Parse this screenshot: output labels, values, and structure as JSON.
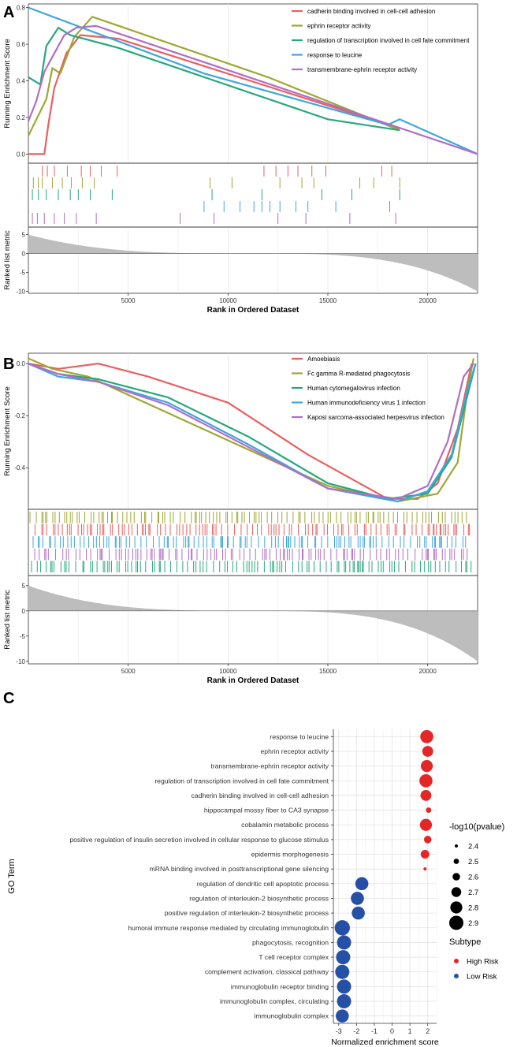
{
  "chart_data": [
    {
      "panel": "A",
      "type": "line",
      "title": "",
      "xlabel": "Rank in Ordered Dataset",
      "ylabel": "Running Enrichment Score",
      "ylabel_bottom": "Ranked list metric",
      "xlim": [
        0,
        22500
      ],
      "ylim": [
        -0.05,
        0.82
      ],
      "y_ticks": [
        "0.0",
        "0.2",
        "0.4",
        "0.6",
        "0.8"
      ],
      "y_tick_values": [
        0.0,
        0.2,
        0.4,
        0.6,
        0.8
      ],
      "x_ticks": [
        "5000",
        "10000",
        "15000",
        "20000"
      ],
      "x_tick_values": [
        5000,
        10000,
        15000,
        20000
      ],
      "metric_ticks": [
        "5",
        "0",
        "-5",
        "-10"
      ],
      "metric_tick_values": [
        5,
        0,
        -5,
        -10
      ],
      "metric_ylim": [
        -10.5,
        7
      ],
      "metric_start": 5,
      "metric_end": -10,
      "legend_position": "top-right",
      "series": [
        {
          "name": "cadherin binding involved in cell-cell adhesion",
          "color": "#E8605F",
          "x": [
            0,
            800,
            1000,
            1300,
            1900,
            2600,
            4500,
            18600
          ],
          "y": [
            0.0,
            0.0,
            0.16,
            0.36,
            0.55,
            0.65,
            0.63,
            0.14
          ],
          "hits": [
            700,
            950,
            1300,
            1950,
            2650,
            3100,
            3650,
            4450,
            11800,
            12400,
            13000,
            13500,
            14200,
            14900,
            17700,
            18200
          ]
        },
        {
          "name": "ephrin receptor activity",
          "color": "#9FA732",
          "x": [
            0,
            900,
            1200,
            1600,
            2300,
            3200,
            12000,
            18600
          ],
          "y": [
            0.1,
            0.3,
            0.47,
            0.44,
            0.64,
            0.75,
            0.42,
            0.13
          ],
          "hits": [
            250,
            500,
            700,
            1200,
            1700,
            2150,
            2700,
            3300,
            9100,
            10200,
            12600,
            13700,
            14300,
            16600,
            17300,
            18600
          ]
        },
        {
          "name": "regulation of transcription involved in cell fate commitment",
          "color": "#27A87A",
          "x": [
            0,
            600,
            900,
            1500,
            2100,
            4500,
            15000,
            18600
          ],
          "y": [
            0.42,
            0.38,
            0.59,
            0.69,
            0.65,
            0.58,
            0.19,
            0.13
          ],
          "hits": [
            200,
            500,
            900,
            1500,
            2100,
            2500,
            3100,
            4200,
            9200,
            11700,
            14700,
            16200,
            18600
          ]
        },
        {
          "name": "response to leucine",
          "color": "#3EA6DF",
          "x": [
            0,
            8800,
            18000,
            18600,
            22500
          ],
          "y": [
            0.8,
            0.44,
            0.16,
            0.19,
            0.0
          ],
          "hits": [
            8800,
            9800,
            10600,
            11300,
            11700,
            12100,
            12600,
            13400,
            14000,
            15400,
            18100
          ]
        },
        {
          "name": "transmembrane-ephrin receptor activity",
          "color": "#B26DC4",
          "x": [
            0,
            400,
            800,
            1300,
            1800,
            2400,
            3400,
            22500
          ],
          "y": [
            0.18,
            0.29,
            0.45,
            0.55,
            0.65,
            0.69,
            0.7,
            0.0
          ],
          "hits": [
            200,
            450,
            800,
            1300,
            1800,
            2400,
            3400,
            7600,
            9300,
            12500,
            13900,
            16100,
            18400
          ]
        }
      ]
    },
    {
      "panel": "B",
      "type": "line",
      "title": "",
      "xlabel": "Rank in Ordered Dataset",
      "ylabel": "Running Enrichment Score",
      "ylabel_bottom": "Ranked list metric",
      "xlim": [
        0,
        22500
      ],
      "ylim": [
        -0.56,
        0.04
      ],
      "y_ticks": [
        "0.0",
        "-0.2",
        "-0.4"
      ],
      "y_tick_values": [
        0.0,
        -0.2,
        -0.4
      ],
      "x_ticks": [
        "5000",
        "10000",
        "15000",
        "20000"
      ],
      "x_tick_values": [
        5000,
        10000,
        15000,
        20000
      ],
      "metric_ticks": [
        "5",
        "0",
        "-5",
        "-10"
      ],
      "metric_tick_values": [
        5,
        0,
        -5,
        -10
      ],
      "metric_ylim": [
        -10.5,
        7
      ],
      "metric_start": 5,
      "metric_end": -10,
      "legend_position": "top-right",
      "series": [
        {
          "name": "Amoebiasis",
          "color": "#E8605F",
          "x": [
            0,
            1500,
            3500,
            6000,
            10000,
            14000,
            18000,
            19500,
            20500,
            21500,
            22200
          ],
          "y": [
            0.0,
            -0.02,
            0.0,
            -0.05,
            -0.15,
            -0.35,
            -0.52,
            -0.52,
            -0.46,
            -0.25,
            0.0
          ],
          "hit_tracks": 1
        },
        {
          "name": "Fc gamma R-mediated phagocytosis",
          "color": "#9FA732",
          "x": [
            0,
            1200,
            3000,
            7000,
            11000,
            15000,
            18500,
            20500,
            21500,
            22000,
            22300
          ],
          "y": [
            0.02,
            -0.02,
            -0.05,
            -0.19,
            -0.33,
            -0.47,
            -0.53,
            -0.5,
            -0.38,
            -0.1,
            0.02
          ],
          "hit_tracks": 0
        },
        {
          "name": "Human cytomegalovirus infection",
          "color": "#27A87A",
          "x": [
            0,
            1500,
            3500,
            7000,
            11000,
            15000,
            18000,
            20000,
            21200,
            22000,
            22400
          ],
          "y": [
            0.0,
            -0.04,
            -0.06,
            -0.13,
            -0.28,
            -0.46,
            -0.52,
            -0.5,
            -0.36,
            -0.12,
            0.0
          ],
          "hit_tracks": 4
        },
        {
          "name": "Human immunodeficiency virus 1 infection",
          "color": "#3EA6DF",
          "x": [
            0,
            1500,
            3500,
            7000,
            11000,
            15000,
            18500,
            20000,
            21200,
            22000,
            22400
          ],
          "y": [
            0.0,
            -0.05,
            -0.07,
            -0.15,
            -0.31,
            -0.48,
            -0.53,
            -0.49,
            -0.35,
            -0.1,
            0.0
          ],
          "hit_tracks": 2
        },
        {
          "name": "Kaposi sarcoma-associated herpesvirus infection",
          "color": "#B26DC4",
          "x": [
            0,
            1500,
            3500,
            7000,
            11000,
            15000,
            18500,
            20000,
            21000,
            21800,
            22300
          ],
          "y": [
            0.0,
            -0.04,
            -0.07,
            -0.16,
            -0.32,
            -0.48,
            -0.52,
            -0.47,
            -0.3,
            -0.05,
            0.0
          ],
          "hit_tracks": 3
        }
      ]
    },
    {
      "panel": "C",
      "type": "scatter",
      "title": "",
      "xlabel": "Normalized enrichment score",
      "ylabel": "GO Term",
      "xlim": [
        -3.3,
        2.5
      ],
      "x_ticks": [
        "-3",
        "-2",
        "-1",
        "0",
        "1",
        "2"
      ],
      "x_tick_values": [
        -3,
        -2,
        -1,
        0,
        1,
        2
      ],
      "size_legend_title": "-log10(pvalue)",
      "size_legend": [
        2.4,
        2.5,
        2.6,
        2.7,
        2.8,
        2.9
      ],
      "size_legend_labels": [
        "2.4",
        "2.5",
        "2.6",
        "2.7",
        "2.8",
        "2.9"
      ],
      "color_legend_title": "Subtype",
      "color_legend": [
        {
          "label": "High Risk",
          "color": "#E32626"
        },
        {
          "label": "Low Risk",
          "color": "#2650A6"
        }
      ],
      "terms": [
        "response to leucine",
        "ephrin receptor activity",
        "transmembrane-ephrin receptor activity",
        "regulation of transcription involved in cell fate commitment",
        "cadherin binding involved in cell-cell adhesion",
        "hippocampal mossy fiber to CA3 synapse",
        "cobalamin metabolic process",
        "positive regulation of insulin secretion involved in cellular response to glucose stimulus",
        "epidermis morphogenesis",
        "mRNA binding involved in posttranscriptional gene silencing",
        "regulation of dendritic cell apoptotic process",
        "regulation of interleukin-2 biosynthetic process",
        "positive regulation of interleukin-2 biosynthetic process",
        "humoral immune response mediated by circulating immunoglobulin",
        "phagocytosis, recognition",
        "T cell receptor complex",
        "complement activation, classical pathway",
        "immunoglobulin receptor binding",
        "immunoglobulin complex, circulating",
        "immunoglobulin complex"
      ],
      "nes": [
        1.95,
        2.0,
        1.95,
        1.9,
        1.9,
        2.05,
        1.9,
        2.0,
        1.85,
        1.85,
        -1.7,
        -1.95,
        -1.9,
        -2.8,
        -2.7,
        -2.75,
        -2.8,
        -2.7,
        -2.7,
        -2.8
      ],
      "neg_log10_p": [
        2.85,
        2.75,
        2.8,
        2.85,
        2.75,
        2.5,
        2.8,
        2.6,
        2.65,
        2.4,
        2.85,
        2.85,
        2.85,
        2.95,
        2.9,
        2.9,
        2.9,
        2.9,
        2.9,
        2.85
      ],
      "subtype": [
        "High Risk",
        "High Risk",
        "High Risk",
        "High Risk",
        "High Risk",
        "High Risk",
        "High Risk",
        "High Risk",
        "High Risk",
        "High Risk",
        "Low Risk",
        "Low Risk",
        "Low Risk",
        "Low Risk",
        "Low Risk",
        "Low Risk",
        "Low Risk",
        "Low Risk",
        "Low Risk",
        "Low Risk"
      ]
    }
  ]
}
